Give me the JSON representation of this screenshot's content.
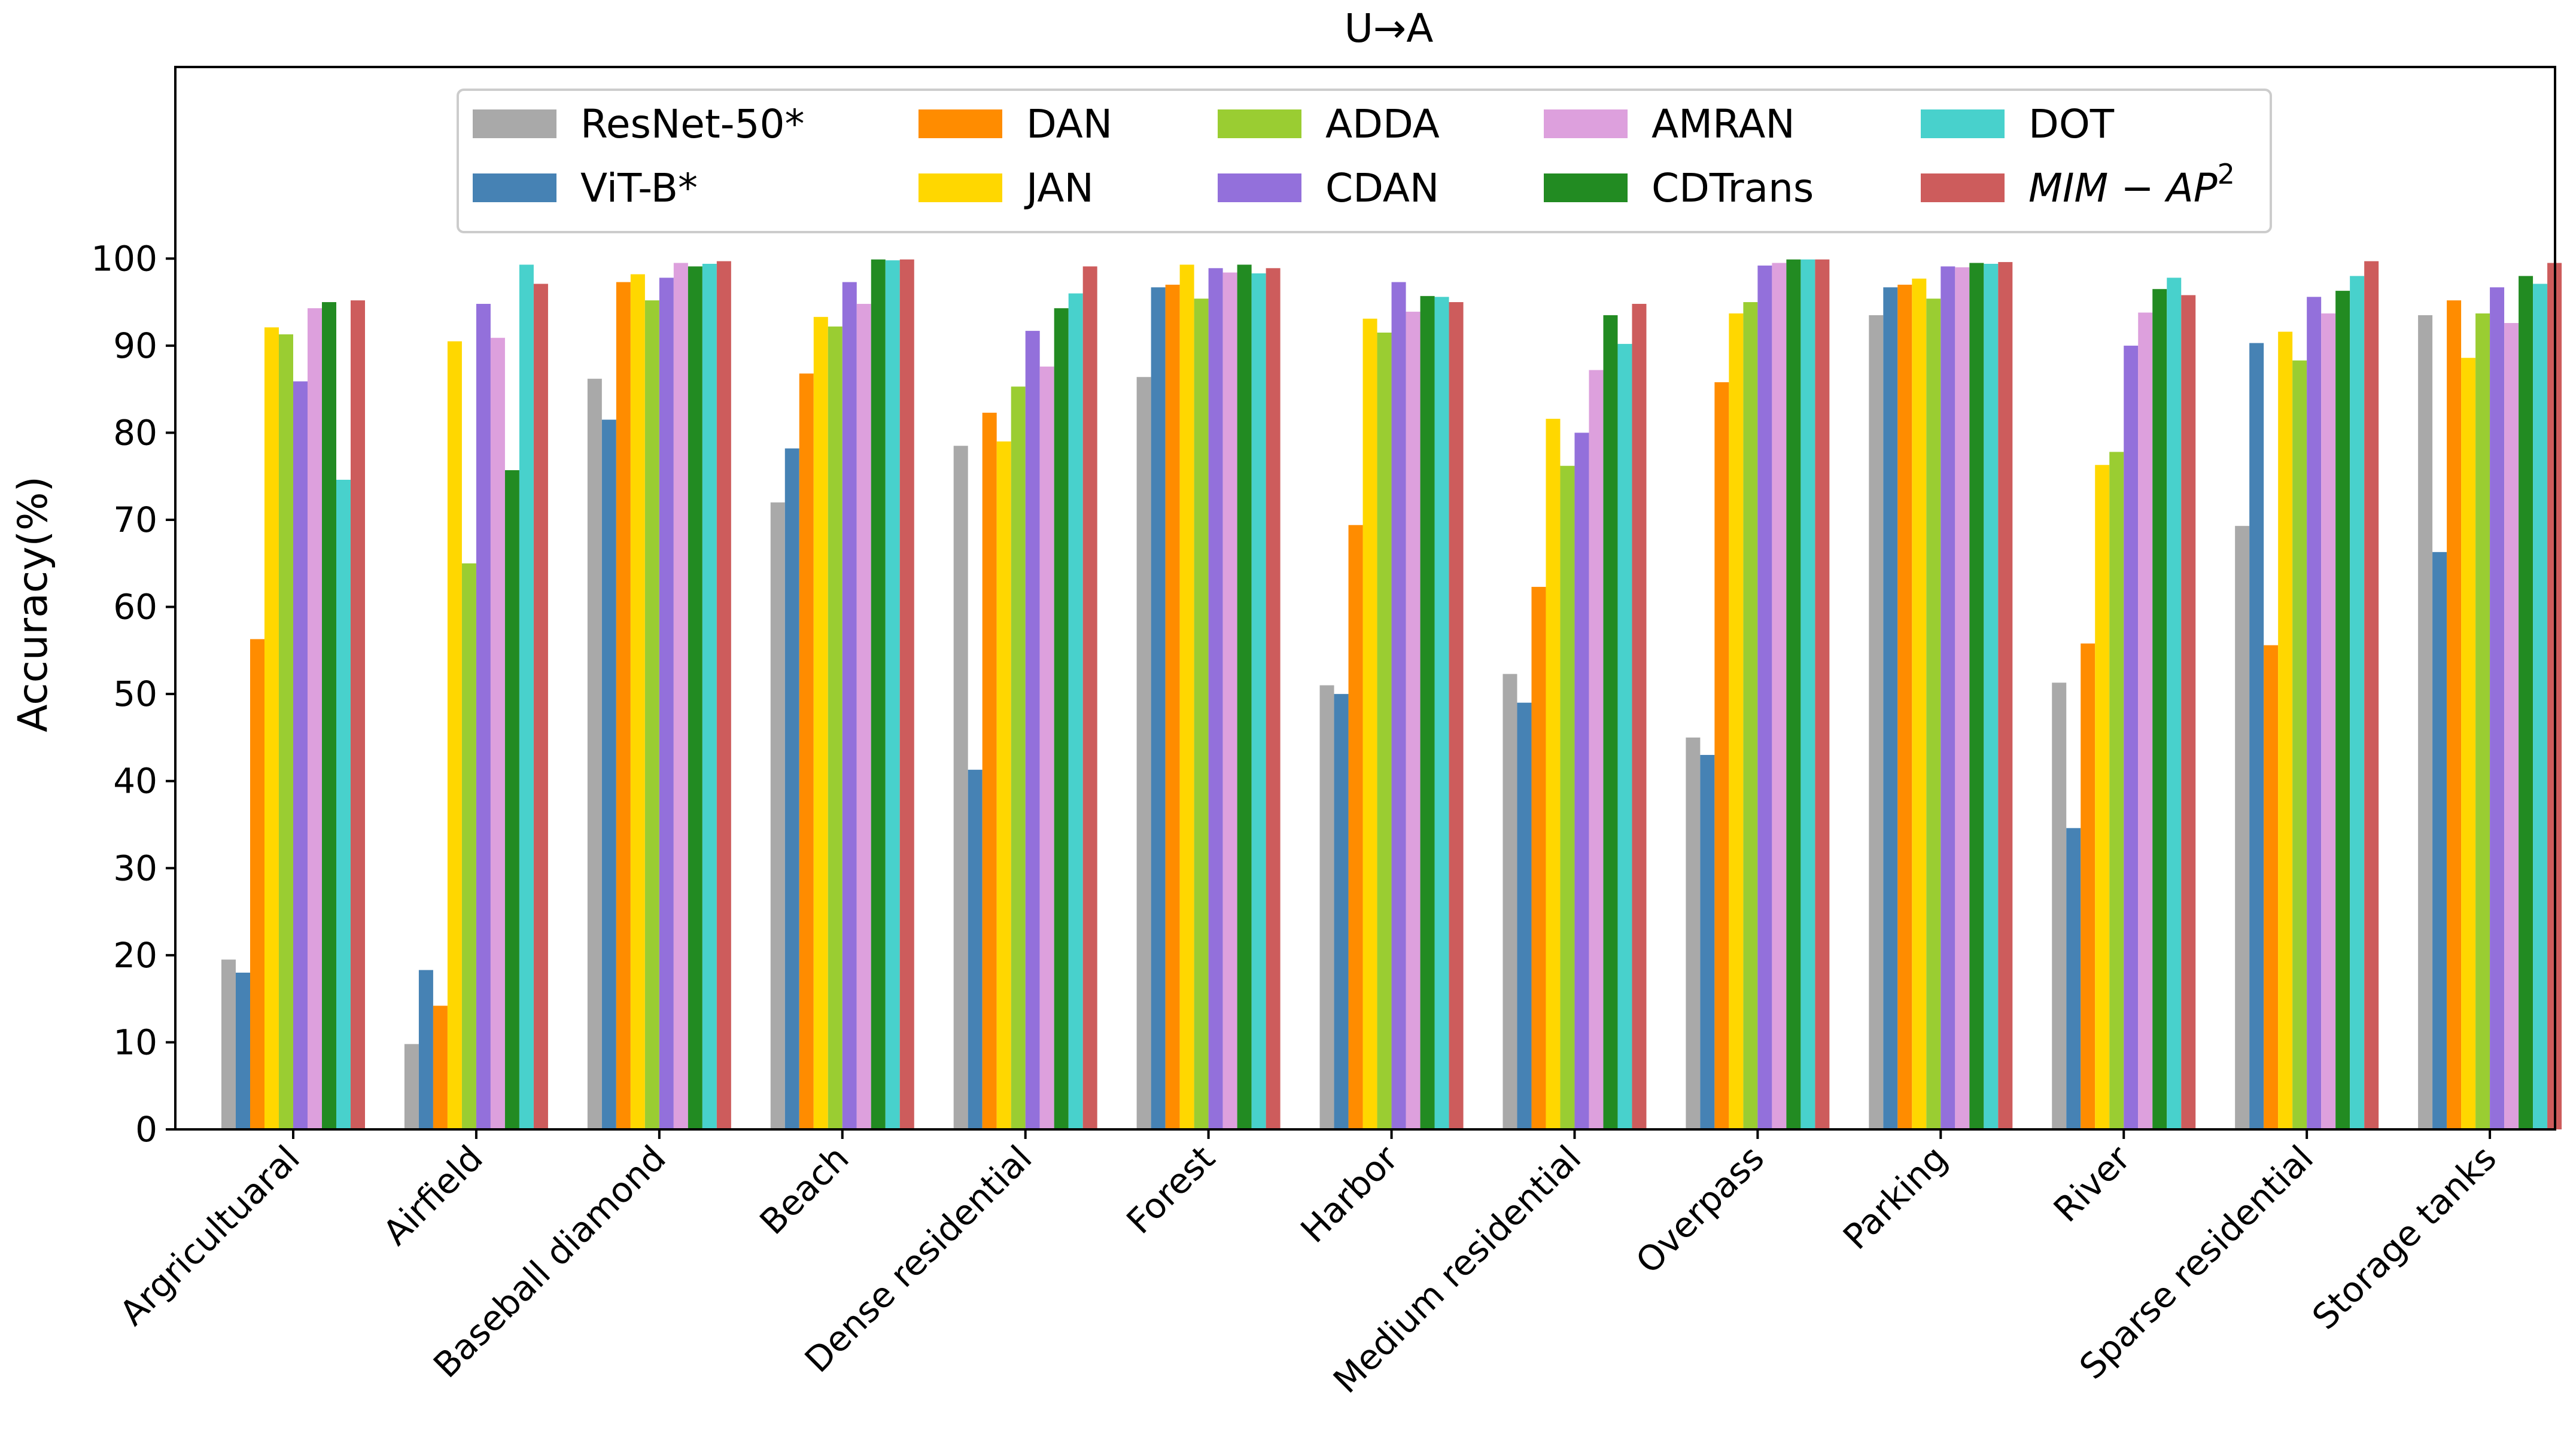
{
  "chart_data": {
    "type": "bar",
    "title": "U→A",
    "xlabel": "",
    "ylabel": "Accuracy(%)",
    "ylim": [
      0,
      122
    ],
    "yticks": [
      0,
      10,
      20,
      30,
      40,
      50,
      60,
      70,
      80,
      90,
      100
    ],
    "legend_position": "top-center",
    "categories": [
      "Argricultuaral",
      "Airfield",
      "Baseball diamond",
      "Beach",
      "Dense residential",
      "Forest",
      "Harbor",
      "Medium residential",
      "Overpass",
      "Parking",
      "River",
      "Sparse residential",
      "Storage tanks"
    ],
    "series": [
      {
        "name": "ResNet-50*",
        "color": "#A9A9A9",
        "values": [
          19.5,
          9.8,
          86.2,
          72.0,
          78.5,
          86.4,
          51.0,
          52.3,
          45.0,
          93.5,
          51.3,
          69.3,
          93.5
        ]
      },
      {
        "name": "ViT-B*",
        "color": "#4682B4",
        "values": [
          18.0,
          18.3,
          81.5,
          78.2,
          41.3,
          96.7,
          50.0,
          49.0,
          43.0,
          96.7,
          34.6,
          90.3,
          66.3
        ]
      },
      {
        "name": "DAN",
        "color": "#FF8C00",
        "values": [
          56.3,
          14.2,
          97.3,
          86.8,
          82.3,
          97.0,
          69.4,
          62.3,
          85.8,
          97.0,
          55.8,
          55.6,
          95.2
        ]
      },
      {
        "name": "JAN",
        "color": "#FFD700",
        "values": [
          92.1,
          90.5,
          98.2,
          93.3,
          79.0,
          99.3,
          93.1,
          81.6,
          93.7,
          97.7,
          76.3,
          91.6,
          88.6
        ]
      },
      {
        "name": "ADDA",
        "color": "#9ACD32",
        "values": [
          91.3,
          65.0,
          95.2,
          92.2,
          85.3,
          95.4,
          91.5,
          76.2,
          95.0,
          95.4,
          77.8,
          88.3,
          93.7
        ]
      },
      {
        "name": "CDAN",
        "color": "#9370DB",
        "values": [
          85.9,
          94.8,
          97.8,
          97.3,
          91.7,
          98.9,
          97.3,
          80.0,
          99.2,
          99.1,
          90.0,
          95.6,
          96.7
        ]
      },
      {
        "name": "AMRAN",
        "color": "#DDA0DD",
        "values": [
          94.3,
          90.9,
          99.5,
          94.8,
          87.6,
          98.4,
          93.9,
          87.2,
          99.5,
          99.0,
          93.8,
          93.7,
          92.6
        ]
      },
      {
        "name": "CDTrans",
        "color": "#228B22",
        "values": [
          95.0,
          75.7,
          99.1,
          99.9,
          94.3,
          99.3,
          95.7,
          93.5,
          99.9,
          99.5,
          96.5,
          96.3,
          98.0
        ]
      },
      {
        "name": "DOT",
        "color": "#48D1CC",
        "values": [
          74.6,
          99.3,
          99.4,
          99.8,
          96.0,
          98.3,
          95.6,
          90.2,
          99.9,
          99.4,
          97.8,
          98.0,
          97.1
        ]
      },
      {
        "name": "MIM-AP2",
        "color": "#CD5C5C",
        "values": [
          95.2,
          97.1,
          99.7,
          99.9,
          99.1,
          98.9,
          95.0,
          94.8,
          99.9,
          99.6,
          95.8,
          99.7,
          99.5
        ]
      }
    ]
  }
}
